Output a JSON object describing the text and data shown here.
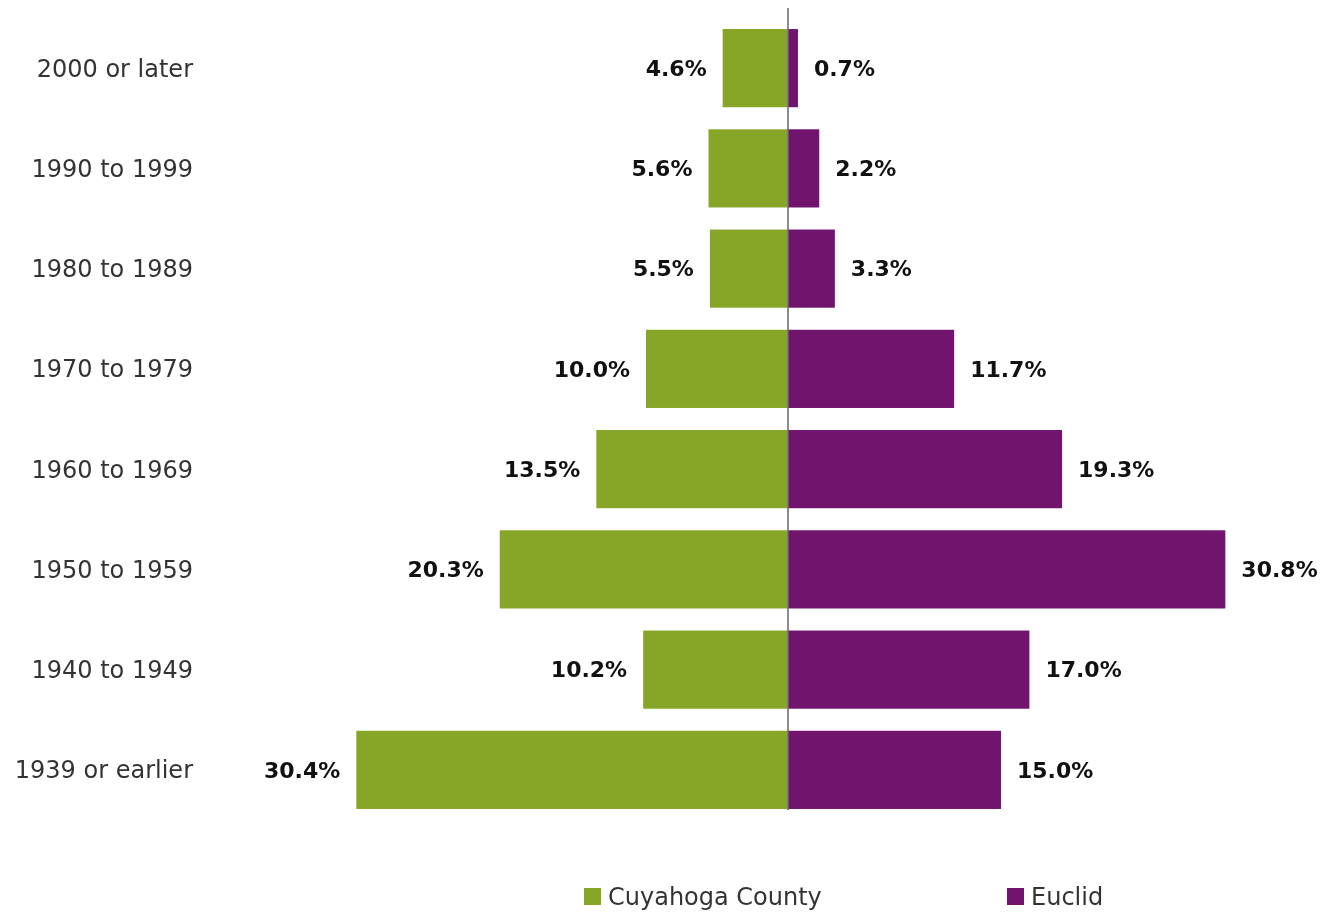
{
  "chart_data": [
    {
      "type": "bar",
      "orientation": "horizontal",
      "categories": [
        "2000 or later",
        "1990 to 1999",
        "1980 to 1989",
        "1970 to 1979",
        "1960 to 1969",
        "1950 to 1959",
        "1940 to 1949",
        "1939 or earlier"
      ],
      "tick_labels": "y",
      "legend": "bottom",
      "series": [
        {
          "name": "Cuyahoga County",
          "color": "#87a628",
          "values": [
            4.6,
            5.6,
            5.5,
            10.0,
            13.5,
            20.3,
            10.2,
            30.4
          ],
          "value_labels": [
            "4.6%",
            "5.6%",
            "5.5%",
            "10.0%",
            "13.5%",
            "20.3%",
            "10.2%",
            "30.4%"
          ]
        }
      ]
    },
    {
      "type": "bar",
      "orientation": "horizontal",
      "categories": [
        null,
        null,
        null,
        null,
        null,
        null,
        null,
        null
      ],
      "tick_labels": false,
      "legend": "bottom",
      "series": [
        {
          "name": "Euclid",
          "color": "#71146e",
          "values": [
            0.7,
            2.2,
            3.3,
            11.7,
            19.3,
            30.8,
            17.0,
            15.0
          ],
          "value_labels": [
            "0.7%",
            "2.2%",
            "3.3%",
            "11.7%",
            "19.3%",
            "30.8%",
            "17.0%",
            "15.0%"
          ]
        }
      ]
    }
  ]
}
